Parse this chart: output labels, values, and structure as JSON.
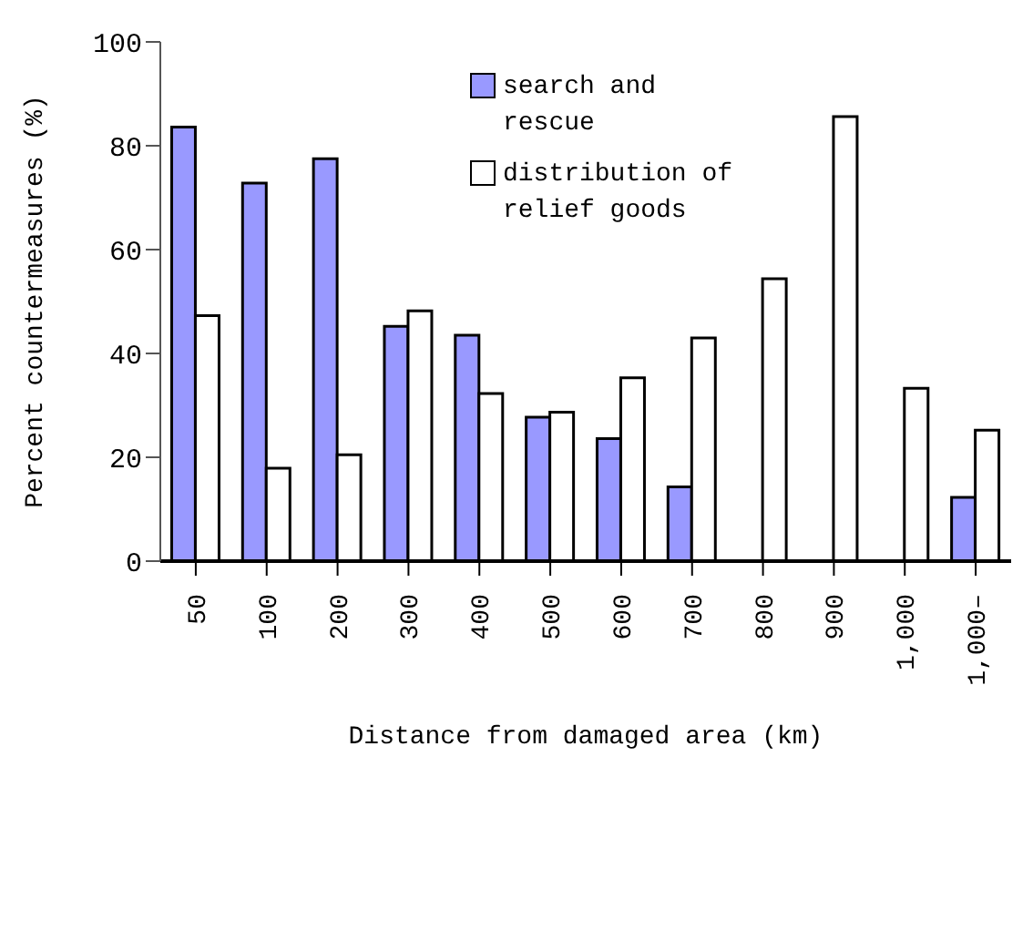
{
  "chart_data": {
    "type": "bar",
    "xlabel": "Distance from damaged area (km)",
    "ylabel": "Percent countermeasures (%)",
    "categories": [
      "50",
      "100",
      "200",
      "300",
      "400",
      "500",
      "600",
      "700",
      "800",
      "900",
      "1,000",
      "1,000–"
    ],
    "series": [
      {
        "name": "search and rescue",
        "color": "#9999ff",
        "values": [
          83.6,
          72.8,
          77.5,
          45.2,
          43.5,
          27.7,
          23.6,
          14.3,
          null,
          null,
          null,
          12.3
        ]
      },
      {
        "name": "distribution of relief goods",
        "color": "#ffffff",
        "values": [
          47.3,
          17.9,
          20.5,
          48.2,
          32.3,
          28.7,
          35.3,
          43.0,
          54.4,
          85.6,
          33.3,
          25.2
        ]
      }
    ],
    "ylim": [
      0,
      100
    ],
    "yticks": [
      0,
      20,
      40,
      60,
      80,
      100
    ],
    "grid": false,
    "legend": "top right"
  }
}
